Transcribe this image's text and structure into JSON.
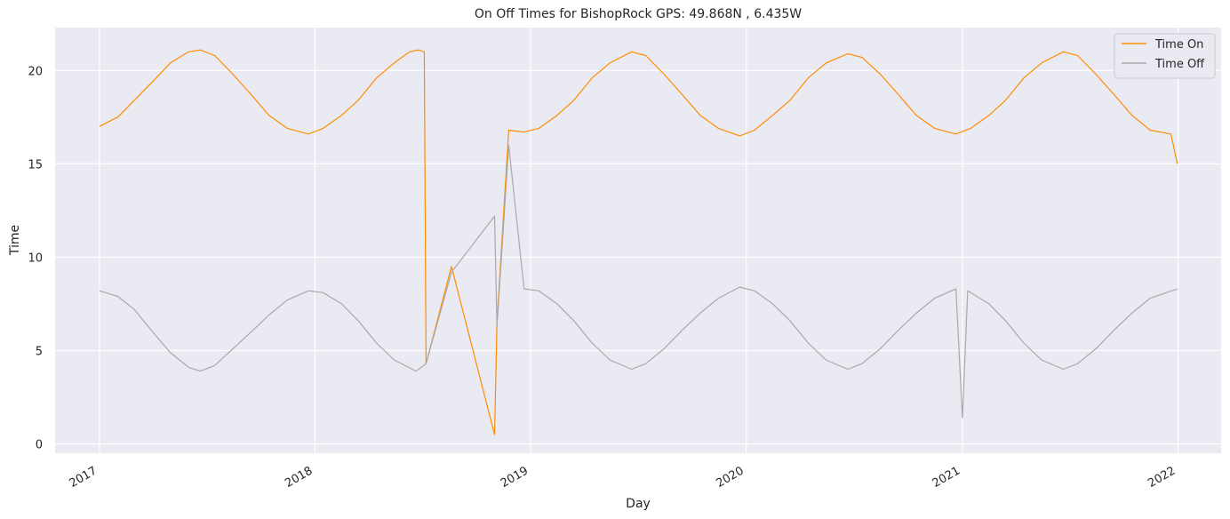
{
  "chart_data": {
    "type": "line",
    "title": "On Off Times for BishopRock  GPS: 49.868N , 6.435W",
    "xlabel": "Day",
    "ylabel": "Time",
    "xlim": [
      "2016-10-18",
      "2022-03-15"
    ],
    "ylim": [
      -0.5,
      22.3
    ],
    "x_ticks": [
      "2017",
      "2018",
      "2019",
      "2020",
      "2021",
      "2022"
    ],
    "y_ticks": [
      0,
      5,
      10,
      15,
      20
    ],
    "grid": true,
    "legend_position": "top-right",
    "series": [
      {
        "name": "Time On",
        "color": "#ff8c00",
        "points": [
          [
            "2017-01-01",
            17.0
          ],
          [
            "2017-02-01",
            17.5
          ],
          [
            "2017-03-01",
            18.4
          ],
          [
            "2017-04-01",
            19.4
          ],
          [
            "2017-05-01",
            20.4
          ],
          [
            "2017-06-01",
            21.0
          ],
          [
            "2017-06-21",
            21.1
          ],
          [
            "2017-07-15",
            20.8
          ],
          [
            "2017-08-15",
            19.8
          ],
          [
            "2017-09-15",
            18.7
          ],
          [
            "2017-10-15",
            17.6
          ],
          [
            "2017-11-15",
            16.9
          ],
          [
            "2017-12-21",
            16.6
          ],
          [
            "2018-01-15",
            16.9
          ],
          [
            "2018-02-15",
            17.6
          ],
          [
            "2018-03-15",
            18.4
          ],
          [
            "2018-04-15",
            19.6
          ],
          [
            "2018-05-15",
            20.4
          ],
          [
            "2018-06-10",
            21.0
          ],
          [
            "2018-06-25",
            21.1
          ],
          [
            "2018-07-05",
            21.0
          ],
          [
            "2018-07-08",
            4.3
          ],
          [
            "2018-08-20",
            9.5
          ],
          [
            "2018-11-01",
            0.5
          ],
          [
            "2018-11-05",
            6.5
          ],
          [
            "2018-11-25",
            16.8
          ],
          [
            "2018-12-21",
            16.7
          ],
          [
            "2019-01-15",
            16.9
          ],
          [
            "2019-02-15",
            17.6
          ],
          [
            "2019-03-15",
            18.4
          ],
          [
            "2019-04-15",
            19.6
          ],
          [
            "2019-05-15",
            20.4
          ],
          [
            "2019-06-21",
            21.0
          ],
          [
            "2019-07-15",
            20.8
          ],
          [
            "2019-08-15",
            19.8
          ],
          [
            "2019-09-15",
            18.7
          ],
          [
            "2019-10-15",
            17.6
          ],
          [
            "2019-11-15",
            16.9
          ],
          [
            "2019-12-21",
            16.5
          ],
          [
            "2020-01-15",
            16.8
          ],
          [
            "2020-02-15",
            17.6
          ],
          [
            "2020-03-15",
            18.4
          ],
          [
            "2020-04-15",
            19.6
          ],
          [
            "2020-05-15",
            20.4
          ],
          [
            "2020-06-21",
            20.9
          ],
          [
            "2020-07-15",
            20.7
          ],
          [
            "2020-08-15",
            19.8
          ],
          [
            "2020-09-15",
            18.7
          ],
          [
            "2020-10-15",
            17.6
          ],
          [
            "2020-11-15",
            16.9
          ],
          [
            "2020-12-21",
            16.6
          ],
          [
            "2021-01-15",
            16.9
          ],
          [
            "2021-02-15",
            17.6
          ],
          [
            "2021-03-15",
            18.4
          ],
          [
            "2021-04-15",
            19.6
          ],
          [
            "2021-05-15",
            20.4
          ],
          [
            "2021-06-21",
            21.0
          ],
          [
            "2021-07-15",
            20.8
          ],
          [
            "2021-08-15",
            19.8
          ],
          [
            "2021-09-15",
            18.7
          ],
          [
            "2021-10-15",
            17.6
          ],
          [
            "2021-11-15",
            16.8
          ],
          [
            "2021-12-20",
            16.6
          ],
          [
            "2021-12-31",
            15.0
          ]
        ]
      },
      {
        "name": "Time Off",
        "color": "#a9a9a9",
        "points": [
          [
            "2017-01-01",
            8.2
          ],
          [
            "2017-02-01",
            7.9
          ],
          [
            "2017-03-01",
            7.2
          ],
          [
            "2017-04-01",
            6.0
          ],
          [
            "2017-05-01",
            4.9
          ],
          [
            "2017-06-01",
            4.1
          ],
          [
            "2017-06-21",
            3.9
          ],
          [
            "2017-07-15",
            4.2
          ],
          [
            "2017-08-15",
            5.1
          ],
          [
            "2017-09-15",
            6.0
          ],
          [
            "2017-10-15",
            6.9
          ],
          [
            "2017-11-15",
            7.7
          ],
          [
            "2017-12-21",
            8.2
          ],
          [
            "2018-01-15",
            8.1
          ],
          [
            "2018-02-15",
            7.5
          ],
          [
            "2018-03-15",
            6.6
          ],
          [
            "2018-04-15",
            5.4
          ],
          [
            "2018-05-15",
            4.5
          ],
          [
            "2018-06-21",
            3.9
          ],
          [
            "2018-07-08",
            4.3
          ],
          [
            "2018-08-20",
            9.2
          ],
          [
            "2018-11-01",
            12.2
          ],
          [
            "2018-11-05",
            6.3
          ],
          [
            "2018-11-25",
            16.0
          ],
          [
            "2018-12-21",
            8.3
          ],
          [
            "2019-01-15",
            8.2
          ],
          [
            "2019-02-15",
            7.5
          ],
          [
            "2019-03-15",
            6.6
          ],
          [
            "2019-04-15",
            5.4
          ],
          [
            "2019-05-15",
            4.5
          ],
          [
            "2019-06-21",
            4.0
          ],
          [
            "2019-07-15",
            4.3
          ],
          [
            "2019-08-15",
            5.1
          ],
          [
            "2019-09-15",
            6.1
          ],
          [
            "2019-10-15",
            7.0
          ],
          [
            "2019-11-15",
            7.8
          ],
          [
            "2019-12-21",
            8.4
          ],
          [
            "2020-01-15",
            8.2
          ],
          [
            "2020-02-15",
            7.5
          ],
          [
            "2020-03-15",
            6.6
          ],
          [
            "2020-04-15",
            5.4
          ],
          [
            "2020-05-15",
            4.5
          ],
          [
            "2020-06-21",
            4.0
          ],
          [
            "2020-07-15",
            4.3
          ],
          [
            "2020-08-15",
            5.1
          ],
          [
            "2020-09-15",
            6.1
          ],
          [
            "2020-10-15",
            7.0
          ],
          [
            "2020-11-15",
            7.8
          ],
          [
            "2020-12-21",
            8.3
          ],
          [
            "2021-01-01",
            1.4
          ],
          [
            "2021-01-10",
            8.2
          ],
          [
            "2021-02-15",
            7.5
          ],
          [
            "2021-03-15",
            6.6
          ],
          [
            "2021-04-15",
            5.4
          ],
          [
            "2021-05-15",
            4.5
          ],
          [
            "2021-06-21",
            4.0
          ],
          [
            "2021-07-15",
            4.3
          ],
          [
            "2021-08-15",
            5.1
          ],
          [
            "2021-09-15",
            6.1
          ],
          [
            "2021-10-15",
            7.0
          ],
          [
            "2021-11-15",
            7.8
          ],
          [
            "2021-12-31",
            8.3
          ]
        ]
      }
    ]
  }
}
